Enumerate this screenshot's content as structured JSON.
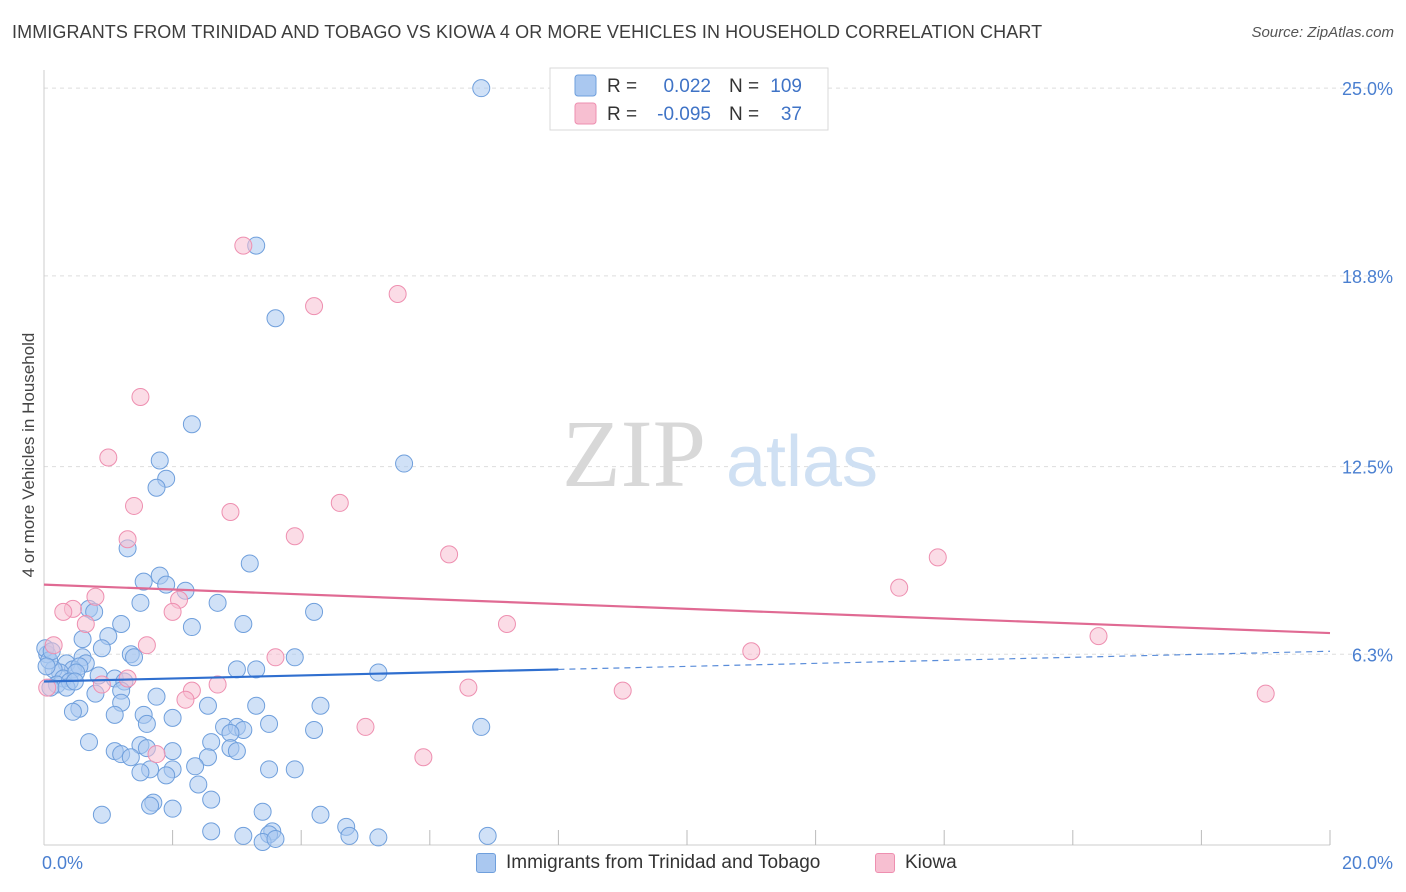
{
  "header": {
    "title": "IMMIGRANTS FROM TRINIDAD AND TOBAGO VS KIOWA 4 OR MORE VEHICLES IN HOUSEHOLD CORRELATION CHART",
    "source": "Source: ZipAtlas.com"
  },
  "watermark": {
    "zip": "ZIP",
    "atlas": "atlas"
  },
  "legend_top": [
    {
      "r_label": "R =",
      "r_value": "0.022",
      "n_label": "N =",
      "n_value": "109"
    },
    {
      "r_label": "R =",
      "r_value": "-0.095",
      "n_label": "N =",
      "n_value": "37"
    }
  ],
  "legend_bottom": [
    {
      "label": "Immigrants from Trinidad and Tobago"
    },
    {
      "label": "Kiowa"
    }
  ],
  "colors": {
    "blue_fill": "#aac8f0",
    "blue_stroke": "#6f9fdc",
    "blue_line": "#2f6fcf",
    "pink_fill": "#f7bfd1",
    "pink_stroke": "#ee8fb0",
    "pink_line": "#e06a93",
    "tick_text": "#4a7fd0",
    "grid": "#dddddd"
  },
  "chart_data": {
    "type": "scatter",
    "xlabel": "",
    "ylabel": "4 or more Vehicles in Household",
    "xlim": [
      0,
      20
    ],
    "ylim": [
      0,
      25.6
    ],
    "x_tick_labels": [
      {
        "value": 0,
        "label": "0.0%"
      },
      {
        "value": 20,
        "label": "20.0%"
      }
    ],
    "y_tick_labels": [
      {
        "value": 6.3,
        "label": "6.3%"
      },
      {
        "value": 12.5,
        "label": "12.5%"
      },
      {
        "value": 18.8,
        "label": "18.8%"
      },
      {
        "value": 25.0,
        "label": "25.0%"
      }
    ],
    "x_minor_ticks": [
      2,
      4,
      6,
      8,
      10,
      12,
      14,
      16,
      18,
      20
    ],
    "grid": true,
    "legend_position": "top-center",
    "series": [
      {
        "name": "Immigrants from Trinidad and Tobago",
        "color": "blue",
        "trend": {
          "x1": 0,
          "y1": 5.4,
          "x2": 8,
          "y2": 5.8,
          "dash_x2": 20,
          "dash_y2": 6.4
        },
        "points": [
          [
            6.8,
            25.0
          ],
          [
            3.3,
            19.8
          ],
          [
            3.6,
            17.4
          ],
          [
            2.3,
            13.9
          ],
          [
            1.8,
            12.7
          ],
          [
            5.6,
            12.6
          ],
          [
            1.9,
            12.1
          ],
          [
            1.75,
            11.8
          ],
          [
            1.3,
            9.8
          ],
          [
            3.2,
            9.3
          ],
          [
            1.8,
            8.9
          ],
          [
            1.55,
            8.7
          ],
          [
            1.9,
            8.6
          ],
          [
            2.2,
            8.4
          ],
          [
            1.5,
            8.0
          ],
          [
            2.7,
            8.0
          ],
          [
            0.7,
            7.8
          ],
          [
            0.78,
            7.7
          ],
          [
            4.2,
            7.7
          ],
          [
            1.2,
            7.3
          ],
          [
            2.3,
            7.2
          ],
          [
            3.1,
            7.3
          ],
          [
            0.6,
            6.8
          ],
          [
            1.0,
            6.9
          ],
          [
            0.9,
            6.5
          ],
          [
            1.35,
            6.3
          ],
          [
            1.4,
            6.2
          ],
          [
            3.9,
            6.2
          ],
          [
            0.6,
            6.2
          ],
          [
            0.65,
            6.0
          ],
          [
            0.35,
            6.0
          ],
          [
            0.45,
            5.8
          ],
          [
            0.55,
            5.9
          ],
          [
            0.25,
            5.7
          ],
          [
            0.15,
            5.8
          ],
          [
            0.3,
            5.5
          ],
          [
            0.5,
            5.7
          ],
          [
            0.2,
            5.3
          ],
          [
            0.4,
            5.4
          ],
          [
            0.1,
            5.2
          ],
          [
            0.35,
            5.2
          ],
          [
            0.48,
            5.4
          ],
          [
            0.85,
            5.6
          ],
          [
            1.1,
            5.5
          ],
          [
            1.25,
            5.4
          ],
          [
            0.05,
            6.3
          ],
          [
            3.0,
            5.8
          ],
          [
            3.3,
            5.8
          ],
          [
            5.2,
            5.7
          ],
          [
            1.2,
            5.1
          ],
          [
            0.8,
            5.0
          ],
          [
            1.75,
            4.9
          ],
          [
            1.2,
            4.7
          ],
          [
            2.55,
            4.6
          ],
          [
            3.3,
            4.6
          ],
          [
            4.3,
            4.6
          ],
          [
            0.55,
            4.5
          ],
          [
            0.45,
            4.4
          ],
          [
            1.1,
            4.3
          ],
          [
            1.55,
            4.3
          ],
          [
            2.0,
            4.2
          ],
          [
            1.6,
            4.0
          ],
          [
            2.8,
            3.9
          ],
          [
            3.0,
            3.9
          ],
          [
            3.5,
            4.0
          ],
          [
            4.2,
            3.8
          ],
          [
            6.8,
            3.9
          ],
          [
            3.1,
            3.8
          ],
          [
            2.9,
            3.7
          ],
          [
            2.6,
            3.4
          ],
          [
            1.5,
            3.3
          ],
          [
            2.9,
            3.2
          ],
          [
            0.7,
            3.4
          ],
          [
            1.1,
            3.1
          ],
          [
            1.2,
            3.0
          ],
          [
            1.6,
            3.2
          ],
          [
            2.0,
            3.1
          ],
          [
            3.0,
            3.1
          ],
          [
            1.35,
            2.9
          ],
          [
            2.55,
            2.9
          ],
          [
            2.0,
            2.5
          ],
          [
            1.65,
            2.5
          ],
          [
            1.5,
            2.4
          ],
          [
            2.35,
            2.6
          ],
          [
            3.5,
            2.5
          ],
          [
            3.9,
            2.5
          ],
          [
            1.9,
            2.3
          ],
          [
            2.4,
            2.0
          ],
          [
            2.6,
            1.5
          ],
          [
            1.7,
            1.4
          ],
          [
            1.65,
            1.3
          ],
          [
            2.0,
            1.2
          ],
          [
            0.9,
            1.0
          ],
          [
            3.4,
            1.1
          ],
          [
            4.3,
            1.0
          ],
          [
            4.7,
            0.6
          ],
          [
            2.6,
            0.45
          ],
          [
            3.1,
            0.3
          ],
          [
            3.55,
            0.45
          ],
          [
            3.5,
            0.35
          ],
          [
            4.75,
            0.3
          ],
          [
            5.2,
            0.25
          ],
          [
            6.9,
            0.3
          ],
          [
            3.4,
            0.1
          ],
          [
            3.6,
            0.2
          ],
          [
            0.02,
            6.5
          ],
          [
            0.08,
            6.1
          ],
          [
            0.12,
            6.4
          ],
          [
            0.04,
            5.9
          ]
        ]
      },
      {
        "name": "Kiowa",
        "color": "pink",
        "trend": {
          "x1": 0,
          "y1": 8.6,
          "x2": 20,
          "y2": 7.0
        },
        "points": [
          [
            3.1,
            19.8
          ],
          [
            5.5,
            18.2
          ],
          [
            4.2,
            17.8
          ],
          [
            1.5,
            14.8
          ],
          [
            1.0,
            12.8
          ],
          [
            1.4,
            11.2
          ],
          [
            4.6,
            11.3
          ],
          [
            2.9,
            11.0
          ],
          [
            3.9,
            10.2
          ],
          [
            1.3,
            10.1
          ],
          [
            6.3,
            9.6
          ],
          [
            13.9,
            9.5
          ],
          [
            13.3,
            8.5
          ],
          [
            0.8,
            8.2
          ],
          [
            2.1,
            8.1
          ],
          [
            0.45,
            7.8
          ],
          [
            0.3,
            7.7
          ],
          [
            2.0,
            7.7
          ],
          [
            7.2,
            7.3
          ],
          [
            0.65,
            7.3
          ],
          [
            16.4,
            6.9
          ],
          [
            1.6,
            6.6
          ],
          [
            0.15,
            6.6
          ],
          [
            11.0,
            6.4
          ],
          [
            3.6,
            6.2
          ],
          [
            0.9,
            5.3
          ],
          [
            1.3,
            5.5
          ],
          [
            2.7,
            5.3
          ],
          [
            6.6,
            5.2
          ],
          [
            9.0,
            5.1
          ],
          [
            2.3,
            5.1
          ],
          [
            2.2,
            4.8
          ],
          [
            19.0,
            5.0
          ],
          [
            5.0,
            3.9
          ],
          [
            0.05,
            5.2
          ],
          [
            5.9,
            2.9
          ],
          [
            1.75,
            3.0
          ]
        ]
      }
    ]
  }
}
